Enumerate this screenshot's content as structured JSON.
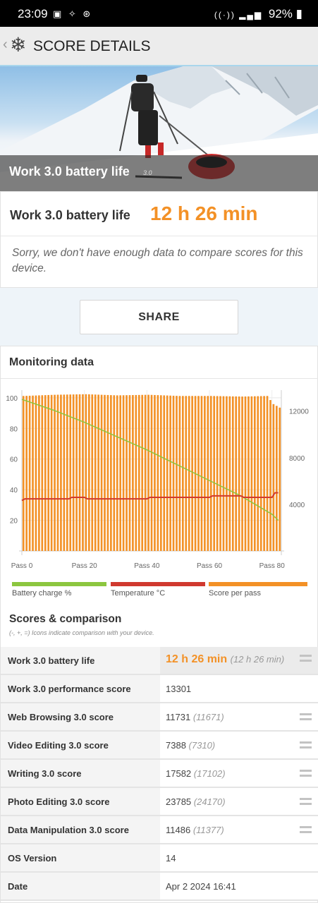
{
  "status_bar": {
    "time": "23:09",
    "battery": "92%"
  },
  "app_bar": {
    "title": "SCORE DETAILS"
  },
  "hero": {
    "title": "Work 3.0 battery life",
    "version": "3.0"
  },
  "result": {
    "label": "Work 3.0 battery life",
    "value": "12 h 26 min",
    "message": "Sorry, we don't have enough data to compare scores for this device."
  },
  "share_label": "SHARE",
  "monitoring": {
    "title": "Monitoring data"
  },
  "chart_data": {
    "type": "bar",
    "x_ticks": [
      "Pass 0",
      "Pass 20",
      "Pass 40",
      "Pass 60",
      "Pass 80"
    ],
    "x_range": [
      0,
      83
    ],
    "y_left_ticks": [
      20,
      40,
      60,
      80,
      100
    ],
    "y_left_range": [
      0,
      105
    ],
    "y_right_ticks": [
      4000,
      8000,
      12000
    ],
    "y_right_range": [
      0,
      13800
    ],
    "grid": true,
    "legend_placement": "bottom",
    "series": [
      {
        "name": "Battery charge %",
        "axis": "left",
        "type": "line",
        "color": "#8cc63f",
        "x": [
          0,
          10,
          20,
          30,
          40,
          50,
          60,
          70,
          80,
          82
        ],
        "values": [
          99,
          92,
          84,
          75,
          66,
          56,
          46,
          36,
          24,
          20
        ]
      },
      {
        "name": "Temperature °C",
        "axis": "left",
        "type": "line",
        "color": "#d0392f",
        "x": [
          0,
          1,
          15,
          16,
          20,
          21,
          40,
          41,
          60,
          61,
          70,
          71,
          80,
          81,
          82
        ],
        "values": [
          33,
          34,
          34,
          35,
          35,
          34,
          34,
          35,
          35,
          36,
          36,
          35,
          35,
          38,
          38
        ]
      },
      {
        "name": "Score per pass",
        "axis": "right",
        "type": "bar",
        "color": "#f39126",
        "x": [
          0,
          10,
          20,
          30,
          40,
          50,
          60,
          70,
          78,
          80,
          82
        ],
        "values": [
          13300,
          13400,
          13450,
          13350,
          13400,
          13300,
          13300,
          13250,
          13300,
          12600,
          12300
        ]
      }
    ]
  },
  "scores": {
    "title": "Scores & comparison",
    "subtitle": "(-, +, =) Icons indicate comparison with your device.",
    "rows": [
      {
        "label": "Work 3.0 battery life",
        "value": "12 h 26 min",
        "compare": "(12 h 26 min)"
      },
      {
        "label": "Work 3.0 performance score",
        "value": "13301",
        "compare": ""
      },
      {
        "label": "Web Browsing 3.0 score",
        "value": "11731",
        "compare": "(11671)"
      },
      {
        "label": "Video Editing 3.0 score",
        "value": "7388",
        "compare": "(7310)"
      },
      {
        "label": "Writing 3.0 score",
        "value": "17582",
        "compare": "(17102)"
      },
      {
        "label": "Photo Editing 3.0 score",
        "value": "23785",
        "compare": "(24170)"
      },
      {
        "label": "Data Manipulation 3.0 score",
        "value": "11486",
        "compare": "(11377)"
      },
      {
        "label": "OS Version",
        "value": "14",
        "compare": ""
      },
      {
        "label": "Date",
        "value": "Apr 2 2024 16:41",
        "compare": ""
      }
    ]
  }
}
